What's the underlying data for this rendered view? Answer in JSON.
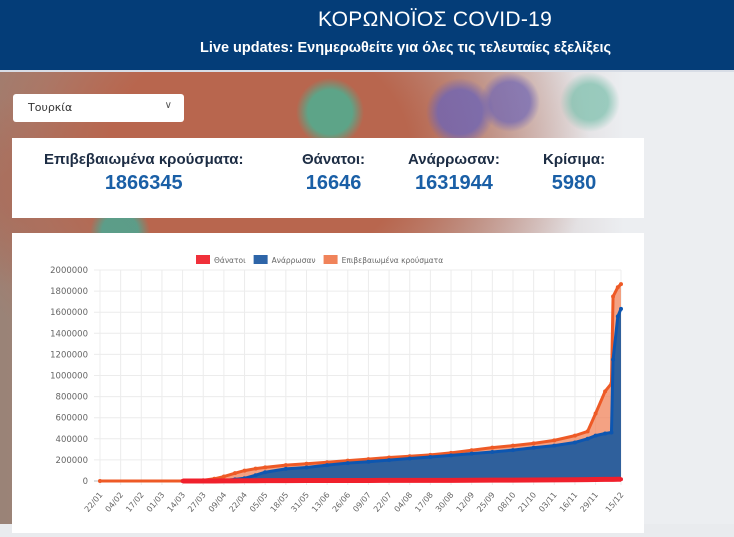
{
  "header": {
    "title": "ΚΟΡΩΝΟΪΟΣ COVID-19",
    "subtitle": "Live updates: Ενημερωθείτε για όλες τις τελευταίες εξελίξεις"
  },
  "country_select": {
    "value": "Τουρκία",
    "icon": "chevron-down-icon"
  },
  "stats": [
    {
      "label": "Επιβεβαιωμένα κρούσματα:",
      "value": "1866345"
    },
    {
      "label": "Θάνατοι:",
      "value": "16646"
    },
    {
      "label": "Ανάρρωσαν:",
      "value": "1631944"
    },
    {
      "label": "Κρίσιμα:",
      "value": "5980"
    }
  ],
  "chart_data": {
    "type": "area",
    "legend_position": "top",
    "grid": true,
    "ylim": [
      0,
      2000000
    ],
    "yticks": [
      "0",
      "200000",
      "400000",
      "600000",
      "800000",
      "1000000",
      "1200000",
      "1400000",
      "1600000",
      "1800000",
      "2000000"
    ],
    "xticks": [
      "22/01",
      "04/02",
      "17/02",
      "01/03",
      "14/03",
      "27/03",
      "09/04",
      "22/04",
      "05/05",
      "18/05",
      "31/05",
      "13/06",
      "26/06",
      "09/07",
      "22/07",
      "04/08",
      "17/08",
      "30/08",
      "12/09",
      "25/09",
      "08/10",
      "21/10",
      "03/11",
      "16/11",
      "29/11",
      "15/12"
    ],
    "x": [
      "22/01",
      "14/03",
      "20/03",
      "27/03",
      "03/04",
      "09/04",
      "16/04",
      "22/04",
      "29/04",
      "05/05",
      "18/05",
      "31/05",
      "13/06",
      "26/06",
      "09/07",
      "22/07",
      "04/08",
      "17/08",
      "30/08",
      "12/09",
      "25/09",
      "08/10",
      "21/10",
      "03/11",
      "16/11",
      "24/11",
      "29/11",
      "05/12",
      "09/12",
      "10/12",
      "13/12",
      "15/12"
    ],
    "series": [
      {
        "name": "Θάνατοι",
        "color": "#f0303a",
        "values": [
          0,
          0,
          9,
          92,
          425,
          908,
          1643,
          2259,
          2900,
          3520,
          4140,
          4540,
          4860,
          5130,
          5330,
          5500,
          5770,
          6010,
          6370,
          7000,
          8000,
          8750,
          9800,
          11000,
          12200,
          13000,
          14000,
          14900,
          15750,
          15900,
          16400,
          16646
        ]
      },
      {
        "name": "Ανάρρωσαν",
        "color": "#2e65a8",
        "values": [
          0,
          0,
          0,
          162,
          1500,
          3957,
          15000,
          25582,
          55000,
          82984,
          115000,
          128000,
          150000,
          170000,
          183000,
          198000,
          213000,
          228000,
          243000,
          260000,
          275000,
          293000,
          315000,
          335000,
          365000,
          400000,
          430000,
          450000,
          460000,
          1150000,
          1560000,
          1631944
        ]
      },
      {
        "name": "Επιβεβαιωμένα κρούσματα",
        "color": "#f0835a",
        "values": [
          0,
          5,
          670,
          7402,
          20921,
          42282,
          74193,
          98674,
          117589,
          129491,
          150593,
          163942,
          178239,
          193115,
          207897,
          223315,
          234934,
          248117,
          267064,
          291162,
          316175,
          335533,
          357000,
          385000,
          430000,
          470000,
          640000,
          850000,
          925000,
          1748567,
          1836728,
          1866345
        ]
      }
    ]
  }
}
